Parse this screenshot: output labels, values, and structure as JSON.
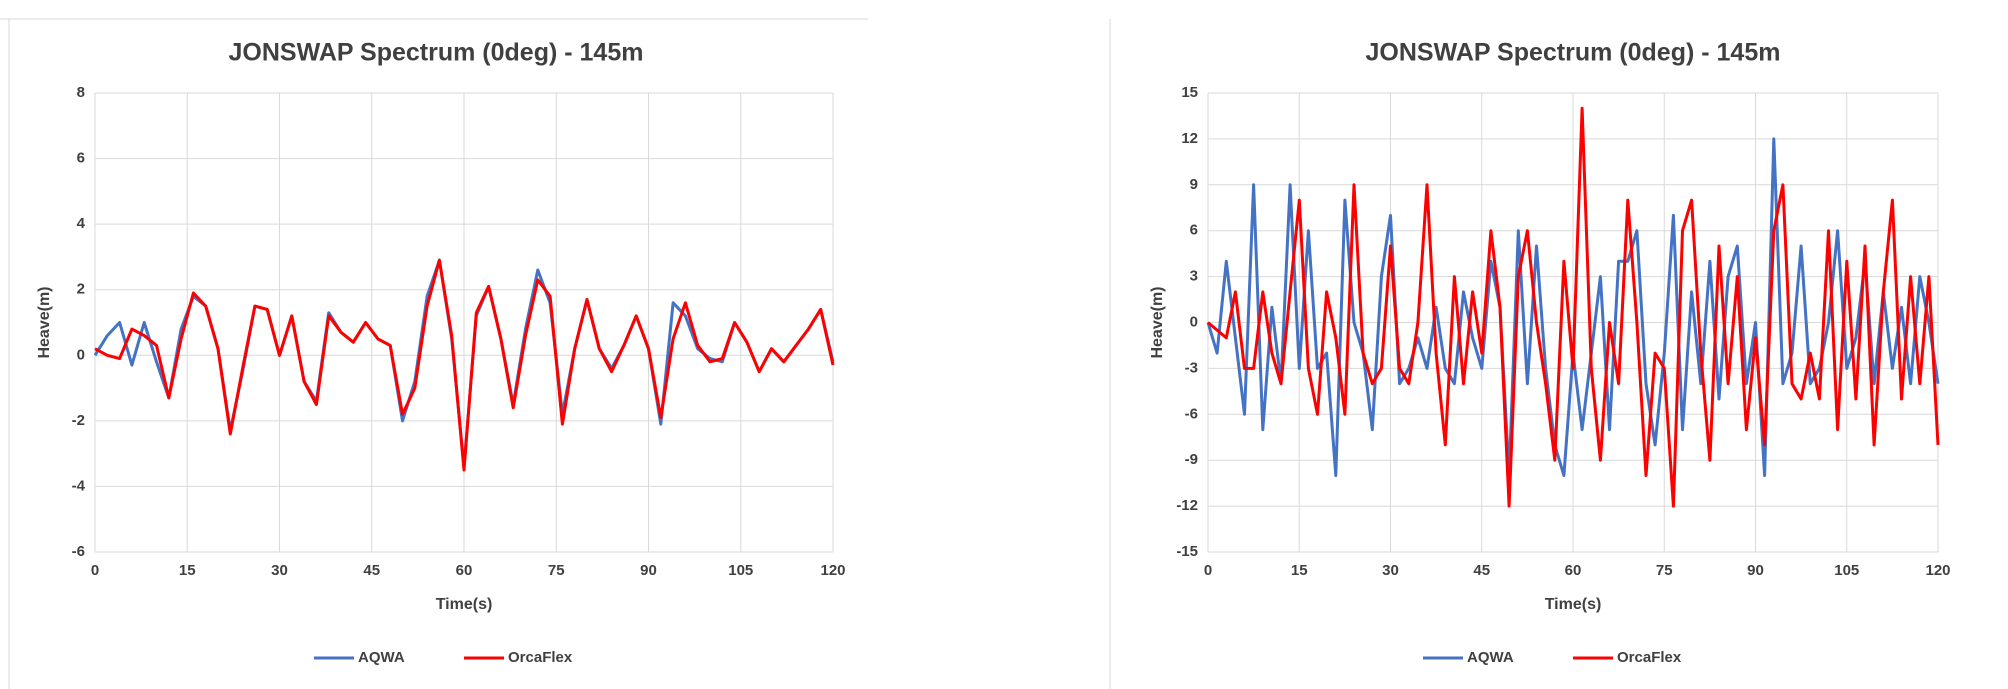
{
  "chart_data": [
    {
      "type": "line",
      "title": "JONSWAP Spectrum (0deg) - 145m",
      "x_label": "Time(s)",
      "y_label": "Heave(m)",
      "xlim": [
        0,
        120
      ],
      "xticks": [
        0,
        15,
        30,
        45,
        60,
        75,
        90,
        105,
        120
      ],
      "ylim": [
        -6,
        8
      ],
      "yticks": [
        -6,
        -4,
        -2,
        0,
        2,
        4,
        6,
        8
      ],
      "grid": true,
      "legend": "bottom",
      "x": [
        0,
        2,
        4,
        6,
        8,
        10,
        12,
        14,
        16,
        18,
        20,
        22,
        24,
        26,
        28,
        30,
        32,
        34,
        36,
        38,
        40,
        42,
        44,
        46,
        48,
        50,
        52,
        54,
        56,
        58,
        60,
        62,
        64,
        66,
        68,
        70,
        72,
        74,
        76,
        78,
        80,
        82,
        84,
        86,
        88,
        90,
        92,
        94,
        96,
        98,
        100,
        102,
        104,
        106,
        108,
        110,
        112,
        114,
        116,
        118,
        120
      ],
      "series": [
        {
          "name": "AQWA",
          "color": "#4472c4",
          "values": [
            0,
            0.6,
            1.0,
            -0.3,
            1.0,
            -0.2,
            -1.3,
            0.8,
            1.8,
            1.5,
            0.2,
            -2.3,
            -0.5,
            1.5,
            1.4,
            0,
            1.2,
            -0.8,
            -1.4,
            1.3,
            0.7,
            0.4,
            1.0,
            0.5,
            0.3,
            -2.0,
            -0.8,
            1.8,
            2.9,
            0.5,
            -3.4,
            1.2,
            2.1,
            0.5,
            -1.5,
            0.8,
            2.6,
            1.6,
            -1.8,
            0.2,
            1.7,
            0.2,
            -0.4,
            0.3,
            1.2,
            0.2,
            -2.1,
            1.6,
            1.2,
            0.2,
            -0.1,
            -0.2,
            1.0,
            0.4,
            -0.5,
            0.2,
            -0.2,
            0.3,
            0.8,
            1.4,
            -0.2
          ]
        },
        {
          "name": "OrcaFlex",
          "color": "#ff0000",
          "values": [
            0.2,
            0,
            -0.1,
            0.8,
            0.6,
            0.3,
            -1.3,
            0.5,
            1.9,
            1.5,
            0.2,
            -2.4,
            -0.4,
            1.5,
            1.4,
            0,
            1.2,
            -0.8,
            -1.5,
            1.2,
            0.7,
            0.4,
            1.0,
            0.5,
            0.3,
            -1.8,
            -1.0,
            1.5,
            2.9,
            0.6,
            -3.5,
            1.3,
            2.1,
            0.5,
            -1.6,
            0.6,
            2.3,
            1.8,
            -2.1,
            0.2,
            1.7,
            0.2,
            -0.5,
            0.3,
            1.2,
            0.2,
            -1.9,
            0.5,
            1.6,
            0.3,
            -0.2,
            -0.1,
            1.0,
            0.4,
            -0.5,
            0.2,
            -0.2,
            0.3,
            0.8,
            1.4,
            -0.3
          ]
        }
      ]
    },
    {
      "type": "line",
      "title": "JONSWAP Spectrum (0deg) - 145m",
      "x_label": "Time(s)",
      "y_label": "Heave(m)",
      "xlim": [
        0,
        120
      ],
      "xticks": [
        0,
        15,
        30,
        45,
        60,
        75,
        90,
        105,
        120
      ],
      "ylim": [
        -15,
        15
      ],
      "yticks": [
        -15,
        -12,
        -9,
        -6,
        -3,
        0,
        3,
        6,
        9,
        12,
        15
      ],
      "grid": true,
      "legend": "bottom",
      "x": [
        0,
        1.5,
        3,
        4.5,
        6,
        7.5,
        9,
        10.5,
        12,
        13.5,
        15,
        16.5,
        18,
        19.5,
        21,
        22.5,
        24,
        25.5,
        27,
        28.5,
        30,
        31.5,
        33,
        34.5,
        36,
        37.5,
        39,
        40.5,
        42,
        43.5,
        45,
        46.5,
        48,
        49.5,
        51,
        52.5,
        54,
        55.5,
        57,
        58.5,
        60,
        61.5,
        63,
        64.5,
        66,
        67.5,
        69,
        70.5,
        72,
        73.5,
        75,
        76.5,
        78,
        79.5,
        81,
        82.5,
        84,
        85.5,
        87,
        88.5,
        90,
        91.5,
        93,
        94.5,
        96,
        97.5,
        99,
        100.5,
        102,
        103.5,
        105,
        106.5,
        108,
        109.5,
        111,
        112.5,
        114,
        115.5,
        117,
        118.5,
        120
      ],
      "series": [
        {
          "name": "AQWA",
          "color": "#4472c4",
          "values": [
            0,
            -2,
            4,
            -1,
            -6,
            9,
            -7,
            1,
            -4,
            9,
            -3,
            6,
            -3,
            -2,
            -10,
            8,
            0,
            -2,
            -7,
            3,
            7,
            -4,
            -3,
            -1,
            -3,
            1,
            -3,
            -4,
            2,
            -1,
            -3,
            4,
            1,
            -10,
            6,
            -4,
            5,
            -3,
            -8,
            -10,
            -2,
            -7,
            -2,
            3,
            -7,
            4,
            4,
            6,
            -4,
            -8,
            -2,
            7,
            -7,
            2,
            -4,
            4,
            -5,
            3,
            5,
            -4,
            0,
            -10,
            12,
            -4,
            -2,
            5,
            -4,
            -3,
            0,
            6,
            -3,
            -1,
            4,
            -4,
            2,
            -3,
            1,
            -4,
            3,
            0,
            -4
          ]
        },
        {
          "name": "OrcaFlex",
          "color": "#ff0000",
          "values": [
            0,
            -0.5,
            -1,
            2,
            -3,
            -3,
            2,
            -2,
            -4,
            2,
            8,
            -3,
            -6,
            2,
            -1,
            -6,
            9,
            -2,
            -4,
            -3,
            5,
            -3,
            -4,
            0,
            9,
            -2,
            -8,
            3,
            -4,
            2,
            -2,
            6,
            1,
            -12,
            3,
            6,
            0,
            -4,
            -9,
            4,
            -3,
            14,
            -3,
            -9,
            0,
            -4,
            8,
            0,
            -10,
            -2,
            -3,
            -12,
            6,
            8,
            -2,
            -9,
            5,
            -4,
            3,
            -7,
            -1,
            -8,
            6,
            9,
            -4,
            -5,
            -2,
            -5,
            6,
            -7,
            4,
            -5,
            5,
            -8,
            2,
            8,
            -5,
            3,
            -4,
            3,
            -8
          ]
        }
      ]
    }
  ]
}
